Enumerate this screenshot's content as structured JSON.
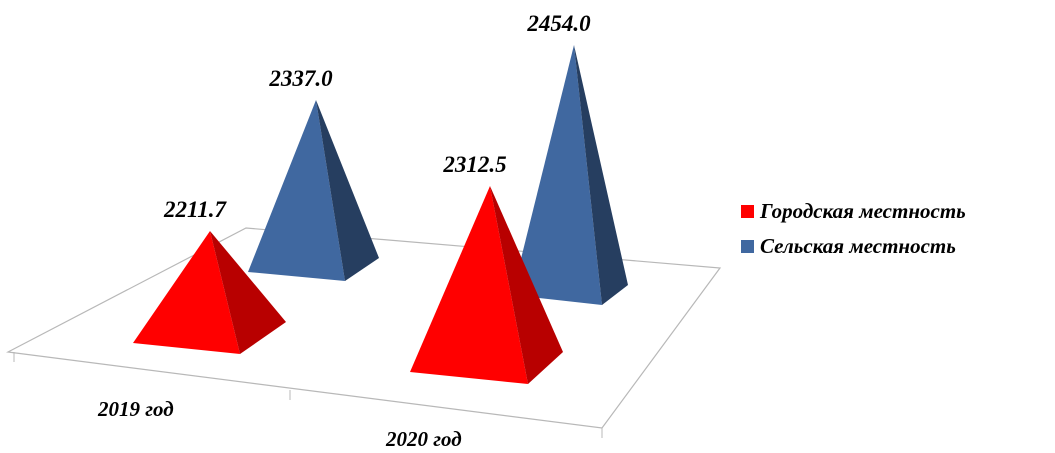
{
  "chart_data": {
    "type": "bar",
    "style": "3d-pyramid",
    "title": "",
    "xlabel": "",
    "ylabel": "",
    "categories": [
      "2019 год",
      "2020 год"
    ],
    "series": [
      {
        "name": "Городская местность",
        "color": "#ff0000",
        "values": [
          2211.7,
          2312.5
        ],
        "labels": [
          "2211.7",
          "2312.5"
        ]
      },
      {
        "name": "Сельская местность",
        "color": "#4068a0",
        "values": [
          2337.0,
          2454.0
        ],
        "labels": [
          "2337.0",
          "2454.0"
        ]
      }
    ],
    "legend": "right",
    "grid": false
  }
}
